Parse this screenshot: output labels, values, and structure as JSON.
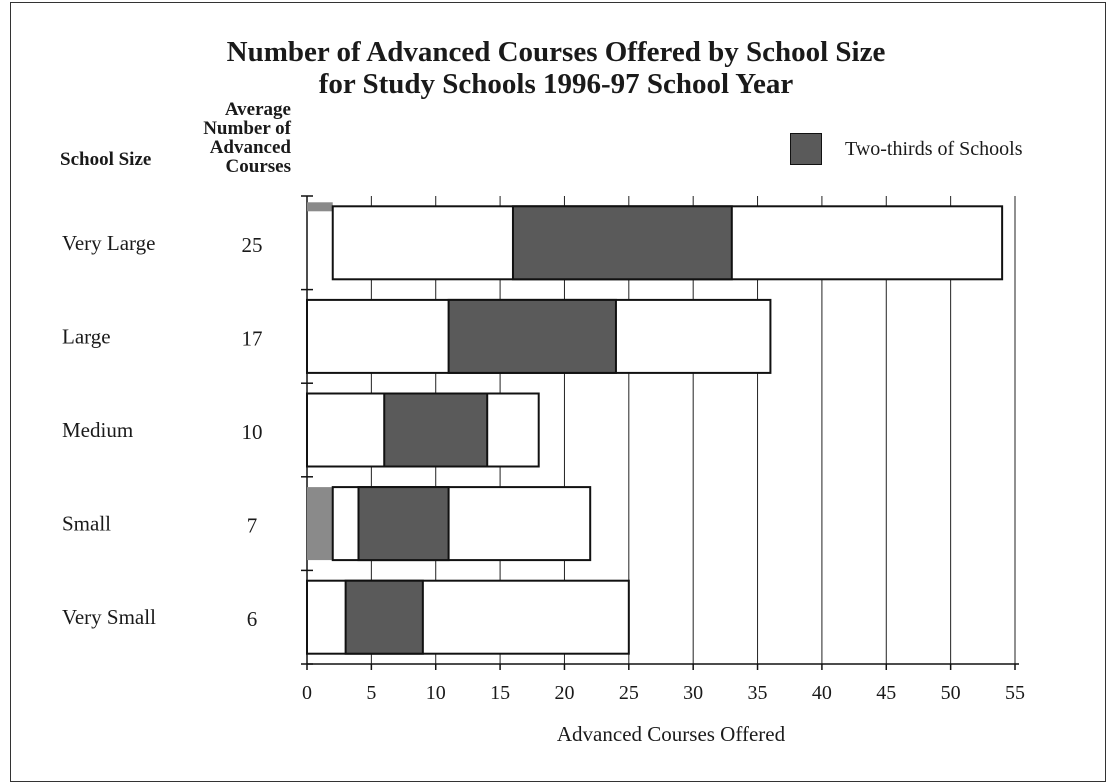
{
  "chart_data": {
    "type": "bar",
    "title_line1": "Number of Advanced Courses Offered by School Size",
    "title_line2": "for Study Schools 1996-97 School Year",
    "row_header": "School Size",
    "avg_header": "Average Number of Advanced Courses",
    "xlabel": "Advanced Courses Offered",
    "xlim": [
      0,
      55
    ],
    "xticks": [
      0,
      5,
      10,
      15,
      20,
      25,
      30,
      35,
      40,
      45,
      50,
      55
    ],
    "grid": true,
    "legend": {
      "position": "top-right",
      "label": "Two-thirds of Schools"
    },
    "colors": {
      "middle": "#5a5a5a",
      "secondary": "#8a8a8a",
      "outline": "#111111",
      "grid": "#222222"
    },
    "categories": [
      "Very Large",
      "Large",
      "Medium",
      "Small",
      "Very Small"
    ],
    "averages": [
      "25",
      "17",
      "10",
      "7",
      "6"
    ],
    "ranges": [
      {
        "min": 2,
        "low": 16,
        "high": 33,
        "max": 54,
        "secondary": [
          0,
          2
        ]
      },
      {
        "min": 0,
        "low": 11,
        "high": 24,
        "max": 36,
        "secondary": null
      },
      {
        "min": 0,
        "low": 6,
        "high": 14,
        "max": 18,
        "secondary": null
      },
      {
        "min": 2,
        "low": 4,
        "high": 11,
        "max": 22,
        "secondary": [
          0,
          2
        ]
      },
      {
        "min": 0,
        "low": 3,
        "high": 9,
        "max": 25,
        "secondary": null
      }
    ]
  }
}
